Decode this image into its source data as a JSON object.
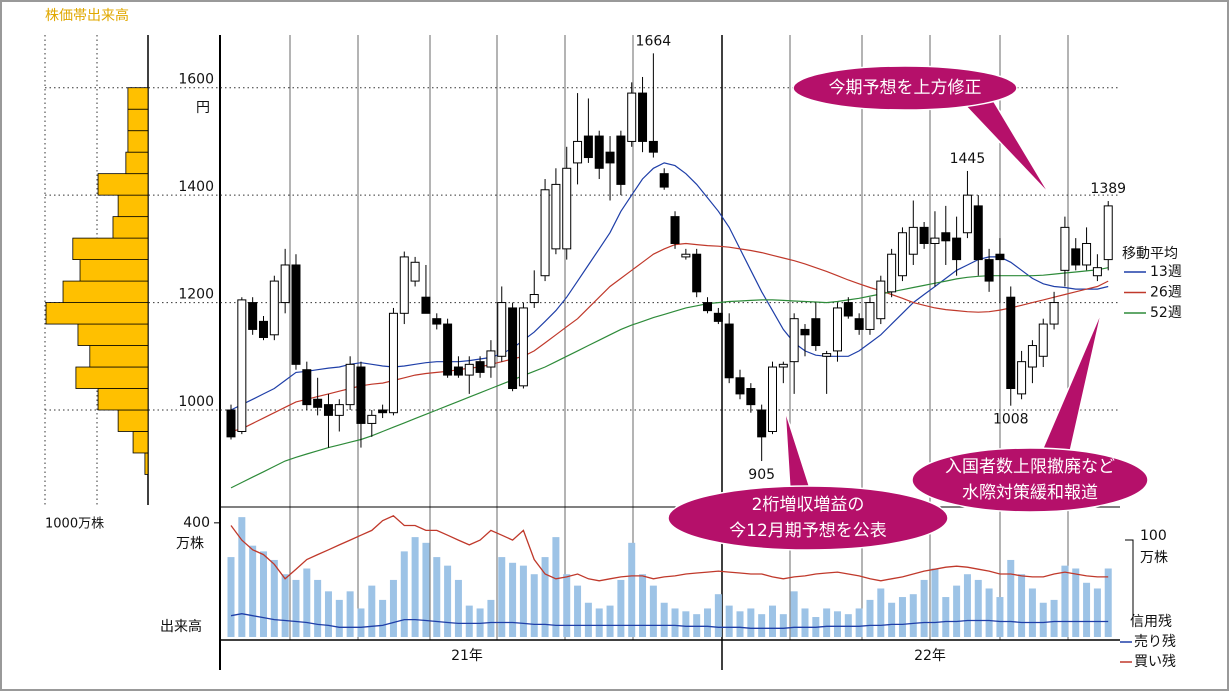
{
  "chart_data": {
    "type": "candlestick",
    "yunit": "円",
    "ylim": [
      825,
      1700
    ],
    "yticks": [
      1000,
      1200,
      1400,
      1600
    ],
    "x_labels": [
      "21年",
      "22年"
    ],
    "up_color": "#ffffff",
    "down_color": "#000000",
    "open": [
      1000,
      960,
      1200,
      1165,
      1140,
      1200,
      1270,
      1075,
      1020,
      1010,
      990,
      1010,
      1080,
      975,
      1000,
      995,
      1180,
      1240,
      1210,
      1170,
      1160,
      1080,
      1065,
      1090,
      1080,
      1100,
      1190,
      1045,
      1200,
      1250,
      1300,
      1300,
      1460,
      1510,
      1510,
      1480,
      1510,
      1500,
      1590,
      1500,
      1440,
      1360,
      1285,
      1290,
      1200,
      1180,
      1160,
      1060,
      1040,
      1000,
      960,
      1080,
      1090,
      1150,
      1170,
      1100,
      1110,
      1200,
      1170,
      1150,
      1170,
      1220,
      1250,
      1290,
      1340,
      1310,
      1330,
      1320,
      1330,
      1380,
      1280,
      1290,
      1210,
      1030,
      1080,
      1100,
      1160,
      1260,
      1300,
      1270,
      1250,
      1280
    ],
    "high": [
      1010,
      1210,
      1210,
      1175,
      1250,
      1300,
      1290,
      1090,
      1060,
      1030,
      1020,
      1100,
      1090,
      1000,
      1010,
      1190,
      1295,
      1285,
      1270,
      1180,
      1170,
      1100,
      1100,
      1100,
      1130,
      1230,
      1200,
      1200,
      1260,
      1430,
      1450,
      1490,
      1590,
      1580,
      1520,
      1510,
      1520,
      1610,
      1620,
      1664,
      1450,
      1370,
      1300,
      1300,
      1210,
      1190,
      1180,
      1075,
      1050,
      1010,
      1090,
      1090,
      1180,
      1160,
      1200,
      1110,
      1200,
      1210,
      1180,
      1210,
      1250,
      1300,
      1340,
      1390,
      1350,
      1370,
      1380,
      1360,
      1445,
      1400,
      1300,
      1320,
      1230,
      1110,
      1130,
      1170,
      1220,
      1360,
      1320,
      1340,
      1290,
      1389
    ],
    "low": [
      945,
      955,
      1140,
      1130,
      1130,
      1180,
      1075,
      1000,
      990,
      930,
      960,
      1000,
      930,
      950,
      985,
      990,
      1160,
      1230,
      1180,
      1150,
      1060,
      1060,
      1030,
      1060,
      1060,
      1090,
      1035,
      1040,
      1190,
      1240,
      1290,
      1280,
      1420,
      1460,
      1430,
      1390,
      1400,
      1490,
      1480,
      1470,
      1410,
      1300,
      1280,
      1210,
      1180,
      1160,
      1050,
      1020,
      995,
      905,
      955,
      1050,
      1030,
      1100,
      1110,
      1030,
      1090,
      1170,
      1140,
      1140,
      1160,
      1210,
      1240,
      1270,
      1300,
      1230,
      1270,
      1250,
      1320,
      1250,
      1220,
      1200,
      1008,
      1020,
      1050,
      1080,
      1150,
      1230,
      1260,
      1260,
      1240,
      1260
    ],
    "close": [
      950,
      1205,
      1150,
      1135,
      1240,
      1270,
      1085,
      1010,
      1005,
      990,
      1010,
      1085,
      975,
      990,
      995,
      1180,
      1285,
      1275,
      1180,
      1160,
      1065,
      1065,
      1085,
      1070,
      1110,
      1200,
      1040,
      1190,
      1215,
      1410,
      1420,
      1450,
      1500,
      1470,
      1450,
      1460,
      1420,
      1590,
      1500,
      1480,
      1415,
      1310,
      1290,
      1220,
      1185,
      1165,
      1060,
      1030,
      1010,
      950,
      1080,
      1085,
      1170,
      1140,
      1120,
      1105,
      1190,
      1175,
      1150,
      1200,
      1240,
      1290,
      1330,
      1340,
      1310,
      1320,
      1315,
      1280,
      1400,
      1280,
      1240,
      1280,
      1040,
      1090,
      1120,
      1160,
      1200,
      1340,
      1270,
      1310,
      1265,
      1380
    ],
    "ma": {
      "title": "移動平均",
      "series": [
        {
          "name": "13週",
          "color": "#1f3fa8",
          "values": [
            1000,
            1010,
            1020,
            1030,
            1040,
            1055,
            1070,
            1072,
            1075,
            1078,
            1080,
            1085,
            1088,
            1085,
            1082,
            1080,
            1082,
            1085,
            1088,
            1090,
            1090,
            1090,
            1092,
            1095,
            1098,
            1105,
            1115,
            1130,
            1145,
            1165,
            1185,
            1210,
            1240,
            1270,
            1300,
            1330,
            1370,
            1400,
            1430,
            1450,
            1460,
            1455,
            1440,
            1420,
            1395,
            1370,
            1340,
            1300,
            1260,
            1220,
            1185,
            1150,
            1125,
            1110,
            1102,
            1100,
            1100,
            1100,
            1110,
            1125,
            1140,
            1160,
            1180,
            1200,
            1215,
            1230,
            1245,
            1260,
            1270,
            1280,
            1285,
            1285,
            1275,
            1260,
            1245,
            1235,
            1230,
            1228,
            1225,
            1225,
            1225,
            1230
          ]
        },
        {
          "name": "26週",
          "color": "#c0392b",
          "values": [
            960,
            965,
            975,
            985,
            995,
            1005,
            1015,
            1020,
            1025,
            1030,
            1035,
            1040,
            1045,
            1048,
            1050,
            1055,
            1060,
            1065,
            1068,
            1070,
            1072,
            1075,
            1078,
            1080,
            1085,
            1090,
            1095,
            1100,
            1110,
            1125,
            1140,
            1155,
            1170,
            1190,
            1210,
            1230,
            1245,
            1260,
            1275,
            1290,
            1300,
            1308,
            1310,
            1308,
            1306,
            1305,
            1303,
            1300,
            1297,
            1293,
            1288,
            1283,
            1278,
            1272,
            1265,
            1258,
            1250,
            1242,
            1235,
            1228,
            1222,
            1215,
            1208,
            1200,
            1195,
            1190,
            1187,
            1185,
            1183,
            1182,
            1183,
            1186,
            1190,
            1195,
            1200,
            1205,
            1210,
            1215,
            1220,
            1225,
            1230,
            1240
          ]
        },
        {
          "name": "52週",
          "color": "#2e8b3a",
          "values": [
            855,
            865,
            875,
            885,
            895,
            905,
            912,
            918,
            924,
            930,
            935,
            940,
            945,
            952,
            960,
            968,
            976,
            984,
            992,
            1000,
            1008,
            1016,
            1024,
            1032,
            1040,
            1048,
            1056,
            1064,
            1072,
            1080,
            1090,
            1100,
            1110,
            1120,
            1130,
            1140,
            1150,
            1158,
            1165,
            1172,
            1178,
            1184,
            1190,
            1194,
            1198,
            1200,
            1202,
            1203,
            1204,
            1205,
            1205,
            1204,
            1203,
            1202,
            1201,
            1200,
            1202,
            1205,
            1208,
            1212,
            1216,
            1220,
            1224,
            1228,
            1232,
            1236,
            1240,
            1244,
            1247,
            1249,
            1250,
            1250,
            1250,
            1250,
            1250,
            1251,
            1253,
            1255,
            1257,
            1259,
            1261,
            1265
          ]
        }
      ]
    },
    "volume": {
      "label": "出来高",
      "unit": "万株",
      "ylim": [
        0,
        445
      ],
      "yticks": [
        400
      ],
      "color": "#9dc3e6",
      "values": [
        280,
        420,
        320,
        300,
        270,
        220,
        200,
        240,
        200,
        160,
        130,
        160,
        100,
        180,
        130,
        200,
        300,
        350,
        330,
        280,
        250,
        200,
        110,
        100,
        130,
        280,
        260,
        250,
        220,
        280,
        350,
        220,
        180,
        120,
        100,
        110,
        200,
        330,
        220,
        180,
        120,
        100,
        90,
        80,
        100,
        150,
        110,
        90,
        100,
        80,
        110,
        80,
        160,
        100,
        70,
        100,
        90,
        80,
        100,
        130,
        170,
        120,
        140,
        150,
        200,
        240,
        140,
        180,
        220,
        200,
        170,
        140,
        270,
        220,
        170,
        120,
        130,
        250,
        240,
        190,
        170,
        240
      ]
    },
    "margin": {
      "title": "信用残",
      "unit": "万株",
      "y2lim": [
        0,
        130
      ],
      "y2ticks": [
        100
      ],
      "series": [
        {
          "name": "売り残",
          "color": "#1f3fa8",
          "axis": "y2",
          "values": [
            22,
            24,
            22,
            20,
            18,
            17,
            16,
            15,
            13,
            12,
            10,
            10,
            10,
            11,
            12,
            15,
            18,
            18,
            17,
            16,
            15,
            14,
            14,
            14,
            15,
            15,
            15,
            14,
            13,
            13,
            12,
            12,
            12,
            12,
            12,
            12,
            12,
            12,
            12,
            12,
            12,
            12,
            11,
            11,
            11,
            10,
            10,
            10,
            9,
            9,
            9,
            9,
            10,
            10,
            10,
            11,
            11,
            11,
            11,
            12,
            12,
            13,
            13,
            14,
            15,
            15,
            16,
            16,
            17,
            17,
            17,
            16,
            16,
            15,
            15,
            15,
            16,
            16,
            16,
            16,
            16,
            16
          ]
        },
        {
          "name": "買い残",
          "color": "#c0392b",
          "axis": "y2",
          "values": [
            115,
            100,
            90,
            85,
            75,
            60,
            70,
            80,
            85,
            90,
            95,
            100,
            105,
            110,
            120,
            125,
            115,
            115,
            110,
            110,
            105,
            100,
            95,
            100,
            110,
            105,
            100,
            110,
            80,
            65,
            60,
            62,
            65,
            60,
            58,
            60,
            62,
            63,
            63,
            60,
            62,
            63,
            65,
            66,
            67,
            68,
            67,
            66,
            65,
            65,
            62,
            60,
            62,
            63,
            65,
            66,
            67,
            65,
            63,
            60,
            58,
            60,
            62,
            65,
            68,
            70,
            72,
            73,
            72,
            70,
            68,
            65,
            65,
            63,
            62,
            62,
            65,
            67,
            65,
            63,
            62,
            62
          ]
        }
      ]
    },
    "profile": {
      "title": "株価帯出来高",
      "unit_label": "1000万株",
      "xlim": [
        0,
        1000
      ],
      "color": "#ffc000",
      "bins": [
        880,
        920,
        960,
        1000,
        1040,
        1080,
        1120,
        1160,
        1200,
        1240,
        1280,
        1320,
        1360,
        1400,
        1440,
        1480,
        1520,
        1560,
        1600
      ],
      "values": [
        30,
        145,
        290,
        485,
        700,
        565,
        680,
        990,
        825,
        660,
        730,
        340,
        290,
        485,
        215,
        195,
        195,
        195
      ]
    },
    "annotations": [
      {
        "lines": [
          "今期予想を上方修正"
        ]
      },
      {
        "lines": [
          "入国者数上限撤廃など",
          "水際対策緩和報道"
        ]
      },
      {
        "lines": [
          "2桁増収増益の",
          "今12月期予想を公表"
        ]
      }
    ]
  }
}
